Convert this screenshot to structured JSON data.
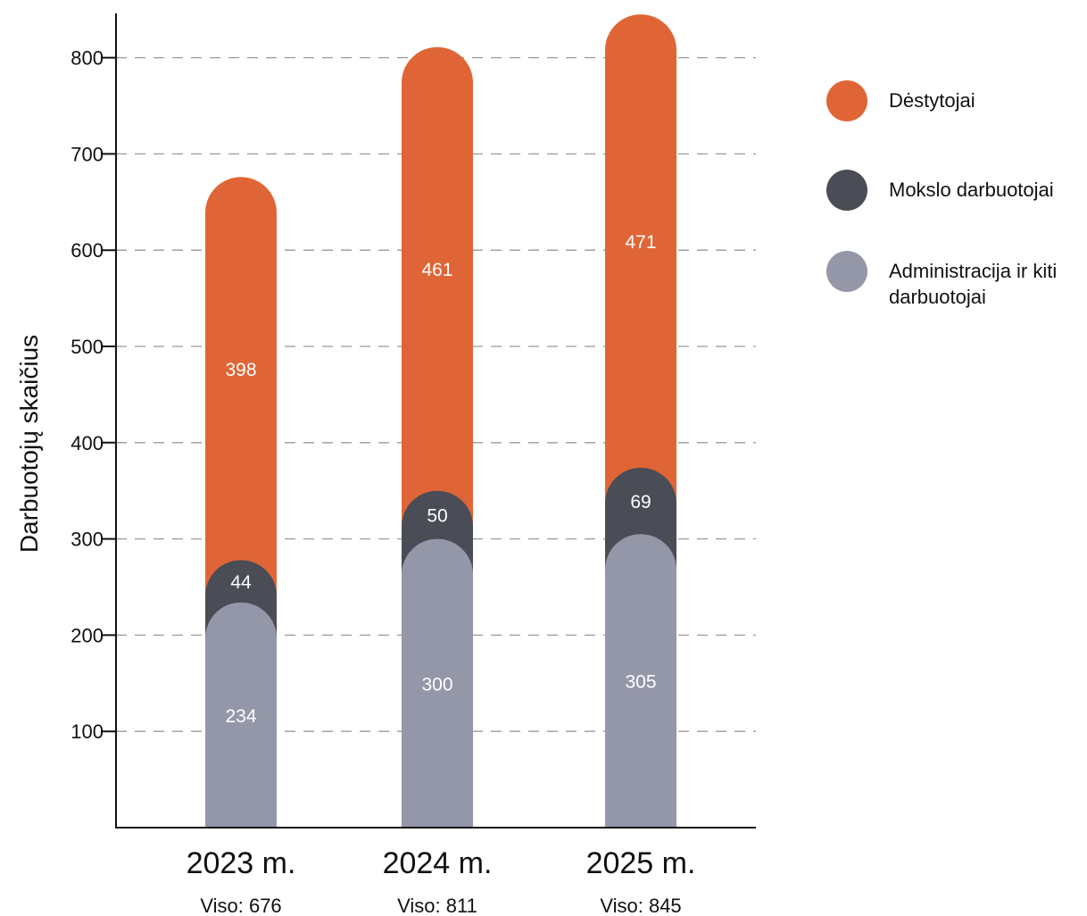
{
  "colors": {
    "Dėstytojai": "#e06536",
    "Mokslo darbuotojai": "#4a4c56",
    "Administracija ir kiti darbuotojai": "#9497a8"
  },
  "chart_data": {
    "type": "bar",
    "stacked": true,
    "ylabel": "Darbuotojų skaičius",
    "ylim": [
      0,
      845
    ],
    "yticks": [
      100,
      200,
      300,
      400,
      500,
      600,
      700,
      800
    ],
    "grid": true,
    "legend_position": "right",
    "categories": [
      "2023 m.",
      "2024 m.",
      "2025 m."
    ],
    "totals": [
      "Viso: 676",
      "Viso: 811",
      "Viso: 845"
    ],
    "series": [
      {
        "name": "Administracija ir kiti darbuotojai",
        "values": [
          234,
          300,
          305
        ]
      },
      {
        "name": "Mokslo darbuotojai",
        "values": [
          44,
          50,
          69
        ]
      },
      {
        "name": "Dėstytojai",
        "values": [
          398,
          461,
          471
        ]
      }
    ]
  },
  "legend": [
    {
      "label": "Dėstytojai"
    },
    {
      "label": "Mokslo darbuotojai"
    },
    {
      "label": "Administracija ir kiti darbuotojai"
    }
  ]
}
